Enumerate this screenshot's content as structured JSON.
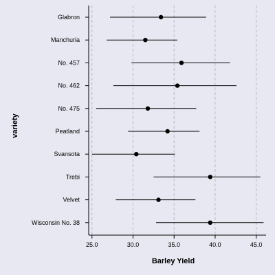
{
  "chart_data": {
    "type": "errorbar-dot",
    "xlabel": "Barley Yield",
    "ylabel": "variety",
    "xlim": [
      24.6,
      46.2
    ],
    "xticks": [
      25.0,
      30.0,
      35.0,
      40.0,
      45.0
    ],
    "xtick_labels": [
      "25.0",
      "30.0",
      "35.0",
      "40.0",
      "45.0"
    ],
    "grid": "vertical dashed",
    "colors": {
      "background": "#e8e8f2",
      "grid": "#b8b8c8",
      "mark": "#000000"
    },
    "rows": [
      {
        "category": "Glabron",
        "mean": 33.4,
        "low": 27.2,
        "high": 38.9
      },
      {
        "category": "Manchuria",
        "mean": 31.5,
        "low": 26.8,
        "high": 35.4
      },
      {
        "category": "No. 457",
        "mean": 35.9,
        "low": 29.8,
        "high": 41.8
      },
      {
        "category": "No. 462",
        "mean": 35.4,
        "low": 27.6,
        "high": 42.6
      },
      {
        "category": "No. 475",
        "mean": 31.8,
        "low": 25.5,
        "high": 37.7
      },
      {
        "category": "Peatland",
        "mean": 34.2,
        "low": 29.4,
        "high": 38.1
      },
      {
        "category": "Svansota",
        "mean": 30.4,
        "low": 25.0,
        "high": 35.1
      },
      {
        "category": "Trebi",
        "mean": 39.4,
        "low": 32.5,
        "high": 45.5
      },
      {
        "category": "Velvet",
        "mean": 33.1,
        "low": 27.9,
        "high": 37.6
      },
      {
        "category": "Wisconsin No. 38",
        "mean": 39.4,
        "low": 32.8,
        "high": 45.9
      }
    ]
  }
}
